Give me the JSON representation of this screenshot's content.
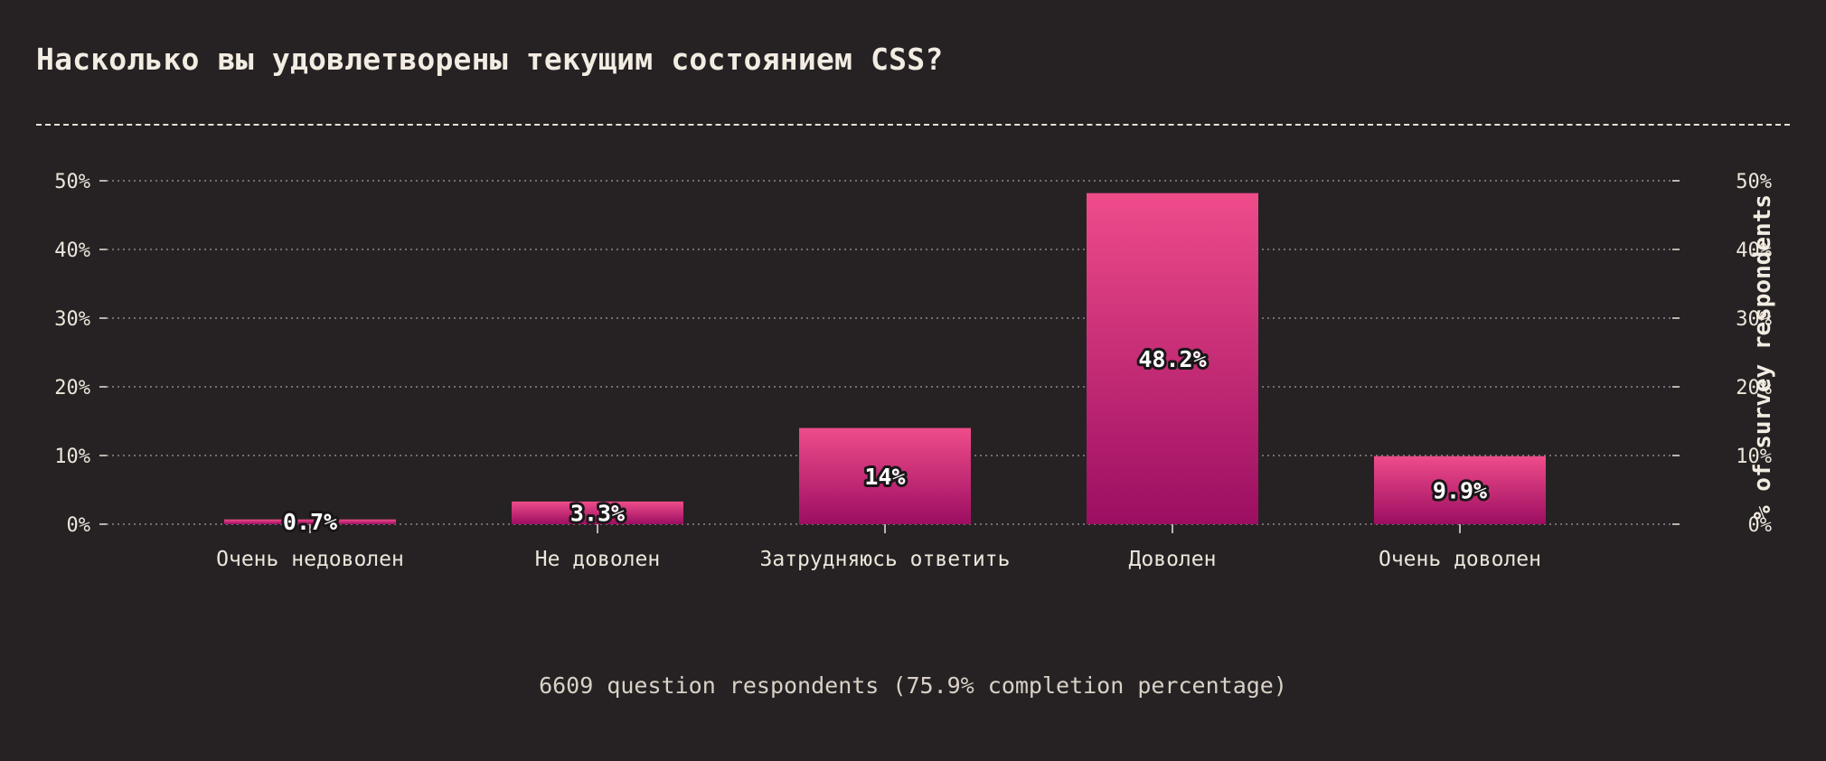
{
  "title": "Насколько вы удовлетворены текущим состоянием CSS?",
  "footnote": "6609 question respondents (75.9% completion percentage)",
  "colors": {
    "background": "#262224",
    "bar_top": "#ef4c8a",
    "bar_bottom": "#9c0e62",
    "text": "#f3ece2",
    "grid": "#8d8589"
  },
  "chart_data": {
    "type": "bar",
    "categories": [
      "Очень недоволен",
      "Не доволен",
      "Затрудняюсь ответить",
      "Доволен",
      "Очень доволен"
    ],
    "values": [
      0.7,
      3.3,
      14,
      48.2,
      9.9
    ],
    "value_labels": [
      "0.7%",
      "3.3%",
      "14%",
      "48.2%",
      "9.9%"
    ],
    "ylabel": "% of survey respondents",
    "ylim": [
      0,
      50
    ],
    "y_ticks": [
      0,
      10,
      20,
      30,
      40,
      50
    ],
    "y_tick_labels": [
      "0%",
      "10%",
      "20%",
      "30%",
      "40%",
      "50%"
    ],
    "grid": true,
    "y_axis_sides": [
      "left",
      "right"
    ]
  }
}
